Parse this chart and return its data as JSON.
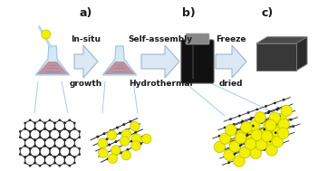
{
  "background_color": "#ffffff",
  "label_a": "a)",
  "label_b": "b)",
  "label_c": "c)",
  "arrow1_text_top": "In-situ",
  "arrow1_text_bot": "growth",
  "arrow2_text_top": "Self-assembly",
  "arrow2_text_bot": "Hydrothermal",
  "arrow3_text_top": "Freeze",
  "arrow3_text_bot": "dried",
  "flask_liquid": "#c08090",
  "flask_glass": "#cce8f4",
  "flask_edge": "#90c0d8",
  "tio2_color": "#f0f000",
  "tio2_edge": "#c0c000",
  "graphene_color": "#282828",
  "arrow_face": "#dce8f4",
  "arrow_edge": "#98b8cc",
  "connector_color": "#90c8e0",
  "label_fontsize": 9,
  "arrow_text_fontsize": 6.5
}
